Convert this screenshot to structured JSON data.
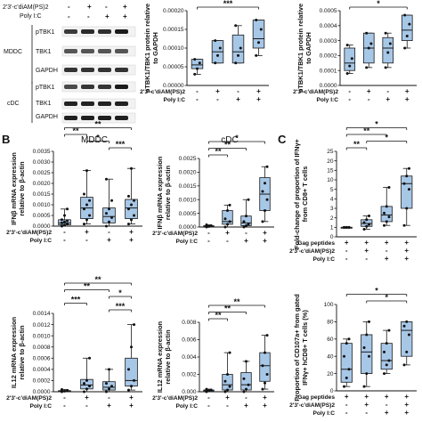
{
  "panel_letters": [
    "B",
    "C"
  ],
  "blot": {
    "condition_rows": [
      "2'3'-c'diAM(PS)2",
      "Poly I:C"
    ],
    "groups": [
      "MDDC",
      "cDC"
    ],
    "bands": [
      "pTBK1",
      "TBK1",
      "GAPDH"
    ]
  },
  "section_titles": {
    "mddc": "MDDC",
    "cdc": "cDC"
  },
  "condition_labels": {
    "cdn": "2'3'-c'diAM(PS)2",
    "polyic": "Poly I:C",
    "gag": "Gag peptides"
  },
  "significance": {
    "p3": "***",
    "p2": "**",
    "p1": "*"
  },
  "chart_data": [
    {
      "id": "A-mddc",
      "type": "box",
      "ylabel": "pTBK1/TBK1 protein relative to GAPDH",
      "ylim": [
        0,
        0.0002
      ],
      "yticks": [
        "0.00000",
        "0.00005",
        "0.00010",
        "0.00015",
        "0.00020"
      ],
      "conditions": {
        "cdn": [
          "-",
          "+",
          "-",
          "+"
        ],
        "polyic": [
          "-",
          "-",
          "+",
          "+"
        ]
      },
      "groups": [
        {
          "q1": 4.5e-05,
          "median": 5.5e-05,
          "q3": 7e-05,
          "min": 3e-05,
          "max": 7e-05,
          "points": [
            3e-05,
            4.5e-05,
            6e-05,
            7e-05
          ]
        },
        {
          "q1": 6e-05,
          "median": 9e-05,
          "q3": 0.00012,
          "min": 6e-05,
          "max": 0.00012,
          "points": [
            6e-05,
            8e-05,
            0.0001,
            0.00012
          ]
        },
        {
          "q1": 6e-05,
          "median": 9e-05,
          "q3": 0.000135,
          "min": 6e-05,
          "max": 0.00016,
          "points": [
            6e-05,
            8e-05,
            0.0001,
            0.00016
          ]
        },
        {
          "q1": 0.0001,
          "median": 0.000125,
          "q3": 0.000175,
          "min": 8e-05,
          "max": 0.000175,
          "points": [
            8e-05,
            0.000115,
            0.00015,
            0.000175
          ]
        }
      ],
      "brackets": [
        {
          "from": 1,
          "to": 4,
          "label": "***"
        }
      ]
    },
    {
      "id": "A-cdc",
      "type": "box",
      "ylabel": "pTBK1/TBK1 protein relative to GAPDH",
      "ylim": [
        0,
        0.0005
      ],
      "yticks": [
        "0.0000",
        "0.0001",
        "0.0002",
        "0.0003",
        "0.0004",
        "0.0005"
      ],
      "conditions": {
        "cdn": [
          "-",
          "+",
          "-",
          "+"
        ],
        "polyic": [
          "-",
          "-",
          "+",
          "+"
        ]
      },
      "groups": [
        {
          "q1": 0.0001,
          "median": 0.00015,
          "q3": 0.00025,
          "min": 8e-05,
          "max": 0.00027,
          "points": [
            8e-05,
            0.00013,
            0.00018,
            0.00027
          ]
        },
        {
          "q1": 0.00015,
          "median": 0.00025,
          "q3": 0.00035,
          "min": 0.00012,
          "max": 0.00035,
          "points": [
            0.00012,
            0.00025,
            0.00028,
            0.00035
          ]
        },
        {
          "q1": 0.00015,
          "median": 0.00025,
          "q3": 0.00032,
          "min": 0.00012,
          "max": 0.00035,
          "points": [
            0.00012,
            0.00022,
            0.00028,
            0.00035
          ]
        },
        {
          "q1": 0.0003,
          "median": 0.00037,
          "q3": 0.00047,
          "min": 0.00025,
          "max": 0.00047,
          "points": [
            0.00025,
            0.00033,
            0.00041,
            0.00047
          ]
        }
      ],
      "brackets": [
        {
          "from": 1,
          "to": 4,
          "label": "*"
        }
      ]
    },
    {
      "id": "B-ifn-mddc",
      "type": "box",
      "ylabel": "IFNβ mRNA expression relative to β-actin",
      "ylim": [
        0,
        0.0035
      ],
      "yticks": [
        "0.0000",
        "0.0005",
        "0.0010",
        "0.0015",
        "0.0020",
        "0.0025",
        "0.0030",
        "0.0035"
      ],
      "conditions": {
        "cdn": [
          "-",
          "+",
          "-",
          "+"
        ],
        "polyic": [
          "-",
          "-",
          "+",
          "+"
        ]
      },
      "groups": [
        {
          "q1": 6e-05,
          "median": 0.00015,
          "q3": 0.0003,
          "min": 0.0,
          "max": 0.0008,
          "points": [
            0.0,
            5e-05,
            0.0001,
            0.00015,
            0.0002,
            0.00025,
            0.0003,
            0.0005,
            0.0008
          ]
        },
        {
          "q1": 0.00035,
          "median": 0.00085,
          "q3": 0.00135,
          "min": 0.0001,
          "max": 0.0026,
          "points": [
            0.0001,
            0.0003,
            0.0005,
            0.0008,
            0.001,
            0.0012,
            0.0015,
            0.0026
          ]
        },
        {
          "q1": 0.00015,
          "median": 0.00045,
          "q3": 0.00085,
          "min": 0.0,
          "max": 0.0022,
          "points": [
            0.0,
            0.0002,
            0.0004,
            0.0006,
            0.0008,
            0.0012,
            0.0022
          ]
        },
        {
          "q1": 0.00035,
          "median": 0.00085,
          "q3": 0.00125,
          "min": 0.0001,
          "max": 0.0027,
          "points": [
            0.0001,
            0.0003,
            0.0005,
            0.0008,
            0.001,
            0.0012,
            0.0014,
            0.0027
          ]
        }
      ],
      "brackets": [
        {
          "from": 1,
          "to": 4,
          "label": "**"
        },
        {
          "from": 1,
          "to": 2,
          "label": "**"
        },
        {
          "from": 2,
          "to": 3,
          "label": "*"
        },
        {
          "from": 3,
          "to": 4,
          "label": "***"
        }
      ]
    },
    {
      "id": "B-ifn-cdc",
      "type": "box",
      "ylabel": "IFNβ mRNA expression relative to β-actin",
      "ylim": [
        0,
        0.0025
      ],
      "yticks": [
        "0.0000",
        "0.0005",
        "0.0010",
        "0.0015",
        "0.0020",
        "0.0025"
      ],
      "conditions": {
        "cdn": [
          "-",
          "+",
          "-",
          "+"
        ],
        "polyic": [
          "-",
          "-",
          "+",
          "+"
        ]
      },
      "groups": [
        {
          "q1": 0.0,
          "median": 2e-05,
          "q3": 5e-05,
          "min": 0.0,
          "max": 8e-05,
          "points": [
            0.0,
            2e-05,
            5e-05,
            8e-05
          ]
        },
        {
          "q1": 0.0001,
          "median": 0.0002,
          "q3": 0.0006,
          "min": 0.0,
          "max": 0.0008,
          "points": [
            0.0,
            0.0001,
            0.0002,
            0.0003,
            0.0006,
            0.0008
          ]
        },
        {
          "q1": 5e-05,
          "median": 0.00015,
          "q3": 0.0004,
          "min": 0.0,
          "max": 0.001,
          "points": [
            0.0,
            5e-05,
            0.0001,
            0.0002,
            0.0004,
            0.001
          ]
        },
        {
          "q1": 0.0006,
          "median": 0.0012,
          "q3": 0.0018,
          "min": 0.0002,
          "max": 0.0022,
          "points": [
            0.0002,
            0.0006,
            0.001,
            0.0013,
            0.0016,
            0.0022
          ]
        }
      ],
      "brackets": [
        {
          "from": 1,
          "to": 4,
          "label": "*"
        },
        {
          "from": 1,
          "to": 3,
          "label": "**"
        },
        {
          "from": 1,
          "to": 2,
          "label": "**"
        }
      ]
    },
    {
      "id": "B-il12-mddc",
      "type": "box",
      "ylabel": "IL12 mRNA expression relative to β-actin",
      "ylim": [
        0,
        0.0014
      ],
      "yticks": [
        "0.0000",
        "0.0002",
        "0.0004",
        "0.0006",
        "0.0008",
        "0.0010",
        "0.0012",
        "0.0014"
      ],
      "conditions": {
        "cdn": [
          "-",
          "+",
          "-",
          "+"
        ],
        "polyic": [
          "-",
          "-",
          "+",
          "+"
        ]
      },
      "groups": [
        {
          "q1": 0.0,
          "median": 1e-05,
          "q3": 2e-05,
          "min": 0.0,
          "max": 4e-05,
          "points": [
            0.0,
            1e-05,
            2e-05,
            4e-05
          ]
        },
        {
          "q1": 5e-05,
          "median": 0.00012,
          "q3": 0.00022,
          "min": 0.0,
          "max": 0.0006,
          "points": [
            0.0,
            5e-05,
            0.0001,
            0.00015,
            0.0002,
            0.0006
          ]
        },
        {
          "q1": 3e-05,
          "median": 8e-05,
          "q3": 0.00018,
          "min": 0.0,
          "max": 0.0004,
          "points": [
            0.0,
            5e-05,
            0.0001,
            0.00015,
            0.0004
          ]
        },
        {
          "q1": 0.0001,
          "median": 0.0002,
          "q3": 0.0006,
          "min": 3e-05,
          "max": 0.0012,
          "points": [
            3e-05,
            0.0001,
            0.0002,
            0.0004,
            0.0008,
            0.0012
          ]
        }
      ],
      "brackets": [
        {
          "from": 1,
          "to": 4,
          "label": "**"
        },
        {
          "from": 1,
          "to": 3,
          "label": "**"
        },
        {
          "from": 3,
          "to": 4,
          "label": "*"
        },
        {
          "from": 1,
          "to": 2,
          "label": "***"
        },
        {
          "from": 3,
          "to": 4,
          "label": "***"
        }
      ]
    },
    {
      "id": "B-il12-cdc",
      "type": "box",
      "ylabel": "IL12 mRNA expression relative to β-actin",
      "ylim": [
        0,
        0.008
      ],
      "yticks": [
        "0.000",
        "0.002",
        "0.004",
        "0.006",
        "0.008"
      ],
      "conditions": {
        "cdn": [
          "-",
          "+",
          "-",
          "+"
        ],
        "polyic": [
          "-",
          "-",
          "+",
          "+"
        ]
      },
      "groups": [
        {
          "q1": 0.0,
          "median": 0.0001,
          "q3": 0.0002,
          "min": 0.0,
          "max": 0.0003,
          "points": [
            0.0,
            0.0001,
            0.0002,
            0.0003
          ]
        },
        {
          "q1": 0.0002,
          "median": 0.0008,
          "q3": 0.002,
          "min": 0.0,
          "max": 0.0045,
          "points": [
            0.0,
            0.0002,
            0.0006,
            0.0012,
            0.002,
            0.0045
          ]
        },
        {
          "q1": 0.0002,
          "median": 0.0008,
          "q3": 0.0022,
          "min": 0.0,
          "max": 0.0035,
          "points": [
            0.0,
            0.0003,
            0.0008,
            0.0015,
            0.0035
          ]
        },
        {
          "q1": 0.0012,
          "median": 0.003,
          "q3": 0.0045,
          "min": 0.0003,
          "max": 0.0065,
          "points": [
            0.0003,
            0.001,
            0.002,
            0.003,
            0.0045,
            0.0065
          ]
        }
      ],
      "brackets": [
        {
          "from": 1,
          "to": 4,
          "label": "**"
        },
        {
          "from": 1,
          "to": 3,
          "label": "**"
        },
        {
          "from": 1,
          "to": 2,
          "label": "**"
        }
      ]
    },
    {
      "id": "C-foldchange",
      "type": "box",
      "ylabel": "Fold-change of proportion of IFNγ+ from CD8+ T cells",
      "ylim": [
        0,
        25
      ],
      "yticks": [
        "0",
        "1",
        "2",
        "3",
        "4",
        "5",
        "10",
        "15",
        "20",
        "25"
      ],
      "conditions": {
        "gag": [
          "+",
          "+",
          "+",
          "+"
        ],
        "cdn": [
          "-",
          "+",
          "-",
          "+"
        ],
        "polyic": [
          "-",
          "-",
          "+",
          "+"
        ]
      },
      "groups": [
        {
          "q1": 1,
          "median": 1,
          "q3": 1,
          "min": 1,
          "max": 1,
          "points": [
            1,
            1,
            1,
            1,
            1,
            1
          ]
        },
        {
          "q1": 1.1,
          "median": 1.4,
          "q3": 1.8,
          "min": 0.8,
          "max": 2.2,
          "points": [
            0.8,
            1.1,
            1.3,
            1.5,
            1.8,
            2.2
          ]
        },
        {
          "q1": 1.6,
          "median": 2.3,
          "q3": 3.2,
          "min": 1.2,
          "max": 6,
          "points": [
            1.2,
            1.6,
            2.1,
            2.5,
            3.2,
            6
          ]
        },
        {
          "q1": 3,
          "median": 8,
          "q3": 12,
          "min": 1.2,
          "max": 16,
          "points": [
            1.2,
            3,
            5,
            8,
            12,
            16
          ]
        }
      ],
      "brackets": [
        {
          "from": 1,
          "to": 4,
          "label": "*"
        },
        {
          "from": 1,
          "to": 3,
          "label": "**"
        },
        {
          "from": 2,
          "to": 4,
          "label": "*"
        },
        {
          "from": 1,
          "to": 2,
          "label": "**"
        }
      ]
    },
    {
      "id": "C-cd107a",
      "type": "box",
      "ylabel": "Proportion of CD107a+ from gated IFNγ+ hCD8+ T cells (%)",
      "ylim": [
        0,
        100
      ],
      "yticks": [
        "0",
        "20",
        "40",
        "60",
        "80",
        "100"
      ],
      "conditions": {
        "gag": [
          "+",
          "+",
          "+",
          "+"
        ],
        "cdn": [
          "-",
          "+",
          "-",
          "+"
        ],
        "polyic": [
          "-",
          "-",
          "+",
          "+"
        ]
      },
      "groups": [
        {
          "q1": 10,
          "median": 25,
          "q3": 55,
          "min": 5,
          "max": 60,
          "points": [
            5,
            15,
            25,
            40,
            55,
            60
          ]
        },
        {
          "q1": 20,
          "median": 45,
          "q3": 65,
          "min": 5,
          "max": 80,
          "points": [
            5,
            20,
            40,
            50,
            65,
            80
          ]
        },
        {
          "q1": 25,
          "median": 35,
          "q3": 55,
          "min": 20,
          "max": 70,
          "points": [
            20,
            30,
            35,
            45,
            55,
            70
          ]
        },
        {
          "q1": 40,
          "median": 70,
          "q3": 80,
          "min": 30,
          "max": 80,
          "points": [
            30,
            45,
            65,
            75,
            80
          ]
        }
      ],
      "brackets": [
        {
          "from": 1,
          "to": 4,
          "label": "*"
        },
        {
          "from": 2,
          "to": 4,
          "label": "*"
        }
      ]
    }
  ]
}
